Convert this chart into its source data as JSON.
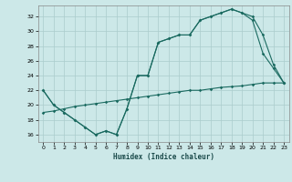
{
  "xlabel": "Humidex (Indice chaleur)",
  "bg_color": "#cce8e8",
  "grid_color": "#aacccc",
  "line_color": "#1a6a60",
  "xlim": [
    -0.5,
    23.5
  ],
  "ylim": [
    15.0,
    33.5
  ],
  "xticks": [
    0,
    1,
    2,
    3,
    4,
    5,
    6,
    7,
    8,
    9,
    10,
    11,
    12,
    13,
    14,
    15,
    16,
    17,
    18,
    19,
    20,
    21,
    22,
    23
  ],
  "yticks": [
    16,
    18,
    20,
    22,
    24,
    26,
    28,
    30,
    32
  ],
  "line1_x": [
    0,
    1,
    2,
    3,
    4,
    5,
    6,
    7,
    8,
    9,
    10,
    11,
    12,
    13,
    14,
    15,
    16,
    17,
    18,
    19,
    20,
    21,
    22,
    23
  ],
  "line1_y": [
    22,
    20,
    19,
    18,
    17,
    16,
    16.5,
    16,
    19.5,
    24,
    24,
    28.5,
    29,
    29.5,
    29.5,
    31.5,
    32,
    32.5,
    33,
    32.5,
    32,
    29.5,
    25.5,
    23
  ],
  "line2_x": [
    0,
    1,
    2,
    3,
    4,
    5,
    6,
    7,
    8,
    9,
    10,
    11,
    12,
    13,
    14,
    15,
    16,
    17,
    18,
    19,
    20,
    21,
    22,
    23
  ],
  "line2_y": [
    22,
    20,
    19,
    18,
    17,
    16,
    16.5,
    16,
    19.5,
    24,
    24,
    28.5,
    29,
    29.5,
    29.5,
    31.5,
    32,
    32.5,
    33,
    32.5,
    31.5,
    27,
    25,
    23
  ],
  "line3_x": [
    0,
    1,
    2,
    3,
    4,
    5,
    6,
    7,
    8,
    9,
    10,
    11,
    12,
    13,
    14,
    15,
    16,
    17,
    18,
    19,
    20,
    21,
    22,
    23
  ],
  "line3_y": [
    19,
    19.2,
    19.5,
    19.8,
    20.0,
    20.2,
    20.4,
    20.6,
    20.8,
    21.0,
    21.2,
    21.4,
    21.6,
    21.8,
    22.0,
    22.0,
    22.2,
    22.4,
    22.5,
    22.6,
    22.8,
    23.0,
    23.0,
    23.0
  ]
}
